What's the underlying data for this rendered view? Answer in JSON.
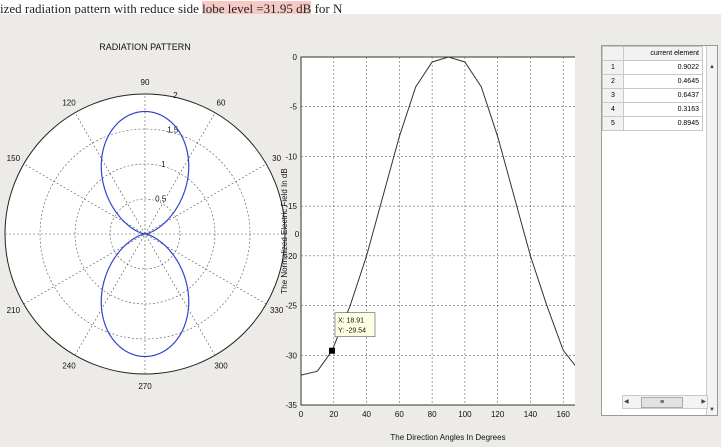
{
  "doc_header": {
    "pre": "ized radiation pattern with reduce side ",
    "highlight": "lobe level =31.95 dB",
    "post": " for N"
  },
  "polar_plot": {
    "title": "RADIATION PATTERN",
    "angle_labels": [
      {
        "text": "0",
        "deg": 0
      },
      {
        "text": "30",
        "deg": 30
      },
      {
        "text": "60",
        "deg": 60
      },
      {
        "text": "90",
        "deg": 90
      },
      {
        "text": "120",
        "deg": 120
      },
      {
        "text": "150",
        "deg": 150
      },
      {
        "text": "180",
        "deg": 180
      },
      {
        "text": "210",
        "deg": 210
      },
      {
        "text": "240",
        "deg": 240
      },
      {
        "text": "270",
        "deg": 270
      },
      {
        "text": "300",
        "deg": 300
      },
      {
        "text": "330",
        "deg": 330
      }
    ],
    "radial_labels": [
      "0.5",
      "1",
      "1.5",
      "2"
    ],
    "rmax": 2,
    "pattern_peak": 1.75,
    "line_color": "#3344cc"
  },
  "cart_plot": {
    "xlabel": "The Direction Angles In Degrees",
    "ylabel": "The Normalized Electric Field In dB",
    "xlim": [
      0,
      180
    ],
    "ylim": [
      -35,
      0
    ],
    "xticks": [
      0,
      20,
      40,
      60,
      80,
      100,
      120,
      140,
      160,
      180
    ],
    "yticks": [
      0,
      -5,
      -10,
      -15,
      -20,
      -25,
      -30,
      -35
    ],
    "datatip": {
      "x_label": "X: 18.91",
      "y_label": "Y: -29.54",
      "x": 18.91,
      "y": -29.54
    },
    "line_color": "#333333"
  },
  "chart_data": [
    {
      "type": "line",
      "title": "RADIATION PATTERN",
      "polar": true,
      "rlim": [
        0,
        2
      ],
      "rticks": [
        0.5,
        1,
        1.5,
        2
      ],
      "theta_ticks": [
        0,
        30,
        60,
        90,
        120,
        150,
        180,
        210,
        240,
        270,
        300,
        330
      ],
      "series": [
        {
          "peak_theta": [
            90,
            270
          ],
          "peak_r": 1.75
        }
      ]
    },
    {
      "type": "line",
      "xlabel": "The Direction Angles In Degrees",
      "ylabel": "The Normalized Electric Field In dB",
      "xlim": [
        0,
        180
      ],
      "ylim": [
        -35,
        0
      ],
      "x": [
        0,
        10,
        18.91,
        30,
        40,
        50,
        60,
        70,
        80,
        90,
        100,
        110,
        120,
        130,
        140,
        150,
        160,
        170,
        180
      ],
      "y": [
        -32,
        -31.6,
        -29.54,
        -25,
        -20,
        -14,
        -8,
        -3,
        -0.5,
        0,
        -0.5,
        -3,
        -8,
        -14,
        -20,
        -25,
        -29.5,
        -31.6,
        -32
      ],
      "grid": true
    }
  ],
  "table": {
    "column_header": "current element",
    "rows": [
      {
        "index": "1",
        "value": "0.9022"
      },
      {
        "index": "2",
        "value": "0.4645"
      },
      {
        "index": "3",
        "value": "0.6437"
      },
      {
        "index": "4",
        "value": "0.3163"
      },
      {
        "index": "5",
        "value": "0.8945"
      }
    ]
  }
}
